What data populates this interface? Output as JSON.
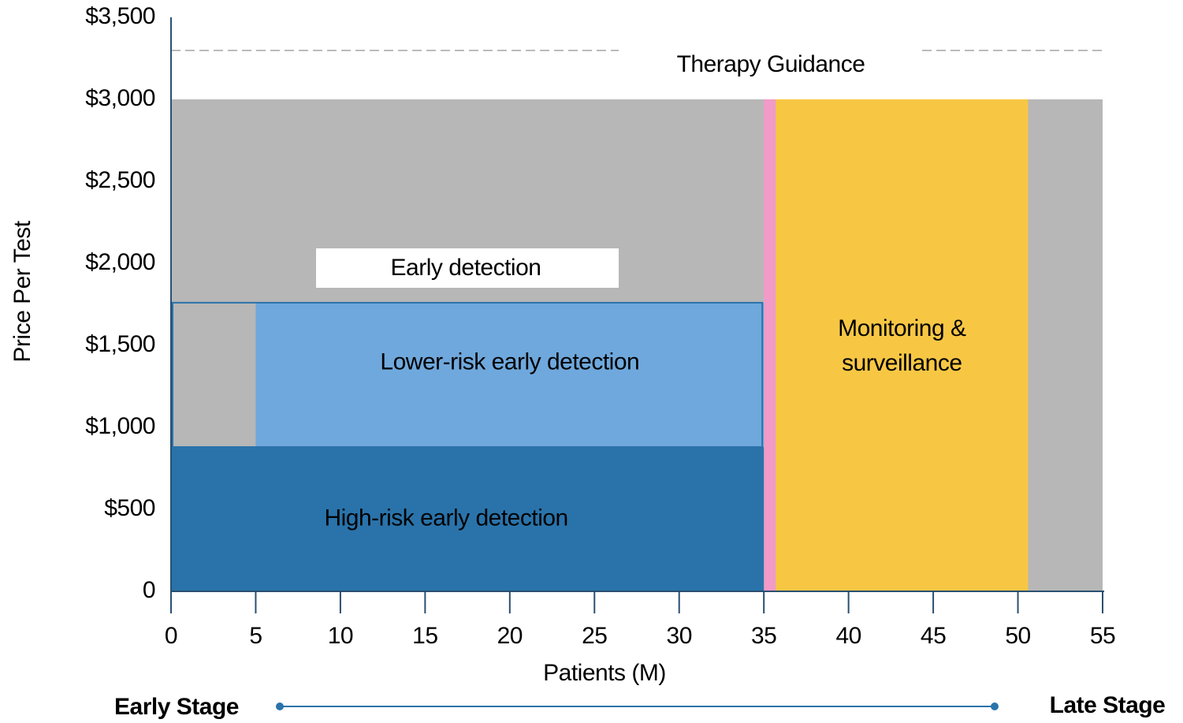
{
  "chart_data": {
    "type": "region",
    "x_label": "Patients (M)",
    "y_label": "Price Per Test",
    "xlim": [
      0,
      55
    ],
    "xticks": [
      0,
      5,
      10,
      15,
      20,
      25,
      30,
      35,
      40,
      45,
      50,
      55
    ],
    "ylim": [
      0,
      3500
    ],
    "yticks": [
      0,
      {
        "value": 500,
        "label": "$500"
      },
      {
        "value": 1000,
        "label": "$1,000"
      },
      {
        "value": 1500,
        "label": "$1,500"
      },
      {
        "value": 2000,
        "label": "$2,000"
      },
      {
        "value": 2500,
        "label": "$2,500"
      },
      {
        "value": 3000,
        "label": "$3,000"
      },
      {
        "value": 3500,
        "label": "$3,500"
      }
    ],
    "regions": [
      {
        "color": "#b7b7b7",
        "x0": 0,
        "x1": 55,
        "y0": 0,
        "y1": 3000
      },
      {
        "color": "#f29ac8",
        "x0": 35,
        "x1": 35.7,
        "y0": 0,
        "y1": 3000
      },
      {
        "label": [
          "Monitoring &",
          "surveillance"
        ],
        "color": "#f7c744",
        "x0": 35.7,
        "x1": 50.6,
        "y0": 0,
        "y1": 3000
      },
      {
        "label": [
          "High-risk early detection"
        ],
        "color": "#2a73aa",
        "x0": 0,
        "x1": 35,
        "y0": 0,
        "y1": 880
      },
      {
        "label": [
          "Lower-risk early detection"
        ],
        "color": "#6fa8dc",
        "x0": 5,
        "x1": 35,
        "y0": 880,
        "y1": 1760
      }
    ],
    "annotations": [
      "Therapy Guidance",
      "Early detection"
    ],
    "stage_labels": [
      "Early Stage",
      "Late Stage"
    ]
  }
}
